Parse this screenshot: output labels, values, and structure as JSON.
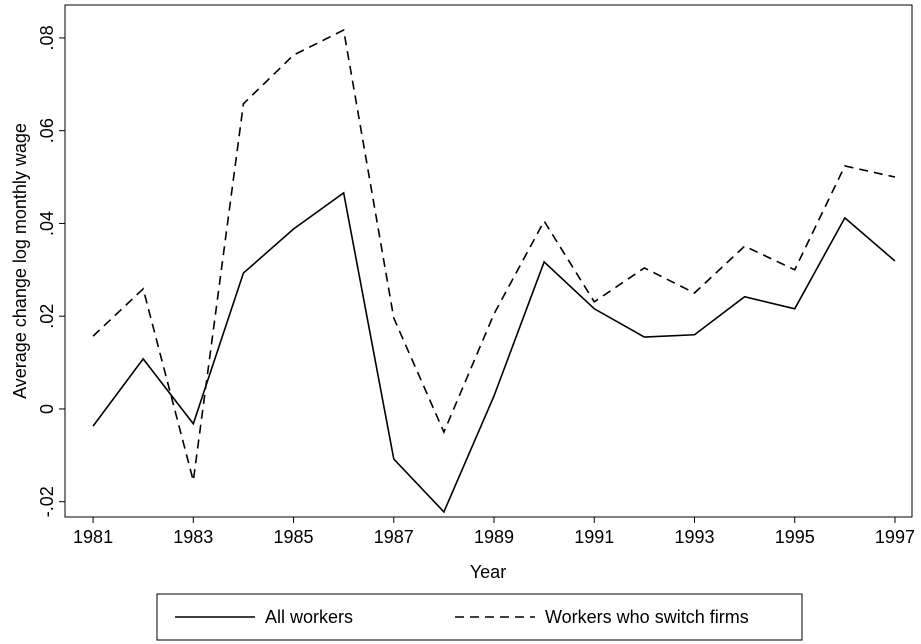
{
  "chart_data": {
    "type": "line",
    "x_label": "Year",
    "y_label": "Average change log monthly wage",
    "x": [
      1981,
      1982,
      1983,
      1984,
      1985,
      1986,
      1987,
      1988,
      1989,
      1990,
      1991,
      1992,
      1993,
      1994,
      1995,
      1996,
      1997
    ],
    "series": [
      {
        "name": "All workers",
        "color": "#000000",
        "dash": "solid",
        "values": [
          -0.0037,
          0.0108,
          -0.0032,
          0.0293,
          0.0388,
          0.0466,
          -0.0108,
          -0.0222,
          0.0028,
          0.0317,
          0.0216,
          0.0155,
          0.016,
          0.0242,
          0.0216,
          0.0412,
          0.0319
        ]
      },
      {
        "name": "Workers who switch firms",
        "color": "#000000",
        "dash": "dashed",
        "values": [
          0.0157,
          0.0259,
          -0.0155,
          0.0658,
          0.0763,
          0.0817,
          0.0196,
          -0.005,
          0.0205,
          0.0405,
          0.0231,
          0.0304,
          0.025,
          0.0351,
          0.03,
          0.0524,
          0.05
        ]
      }
    ],
    "xlim": [
      1980.44,
      1997.34
    ],
    "xticks": [
      1981,
      1983,
      1985,
      1987,
      1989,
      1991,
      1993,
      1995,
      1997
    ],
    "ylim": [
      -0.0233,
      0.0871
    ],
    "yticks": [
      {
        "value": -0.02,
        "label": "-.02"
      },
      0,
      {
        "value": 0.02,
        "label": ".02"
      },
      {
        "value": 0.04,
        "label": ".04"
      },
      {
        "value": 0.06,
        "label": ".06"
      },
      {
        "value": 0.08,
        "label": ".08"
      }
    ],
    "grid": false,
    "legend": "bottom"
  }
}
